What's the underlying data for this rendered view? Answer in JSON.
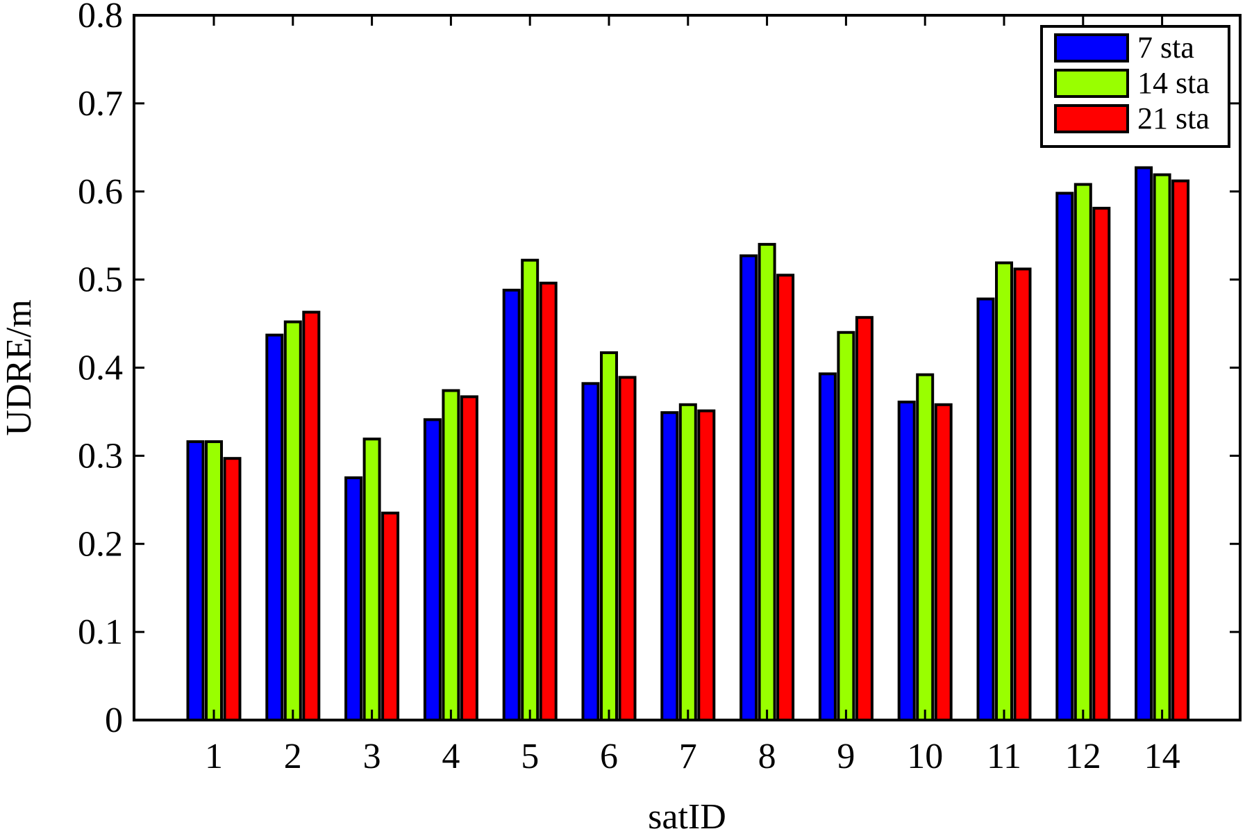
{
  "chart_data": {
    "type": "bar",
    "title": "",
    "xlabel": "satID",
    "ylabel": "UDRE/m",
    "categories": [
      "1",
      "2",
      "3",
      "4",
      "5",
      "6",
      "7",
      "8",
      "9",
      "10",
      "11",
      "12",
      "14"
    ],
    "series": [
      {
        "name": "7 sta",
        "color": "#0000ff",
        "values": [
          0.316,
          0.437,
          0.275,
          0.341,
          0.488,
          0.382,
          0.349,
          0.527,
          0.393,
          0.361,
          0.478,
          0.598,
          0.627
        ]
      },
      {
        "name": "14 sta",
        "color": "#99ff00",
        "values": [
          0.316,
          0.452,
          0.319,
          0.374,
          0.522,
          0.417,
          0.358,
          0.54,
          0.44,
          0.392,
          0.519,
          0.608,
          0.619
        ]
      },
      {
        "name": "21 sta",
        "color": "#ff0000",
        "values": [
          0.297,
          0.463,
          0.235,
          0.367,
          0.496,
          0.389,
          0.351,
          0.505,
          0.457,
          0.358,
          0.512,
          0.581,
          0.612
        ]
      }
    ],
    "ylim": [
      0,
      0.8
    ],
    "yticks": [
      "0",
      "0.1",
      "0.2",
      "0.3",
      "0.4",
      "0.5",
      "0.6",
      "0.7",
      "0.8"
    ],
    "grid": false,
    "legend_position": "top-right"
  }
}
